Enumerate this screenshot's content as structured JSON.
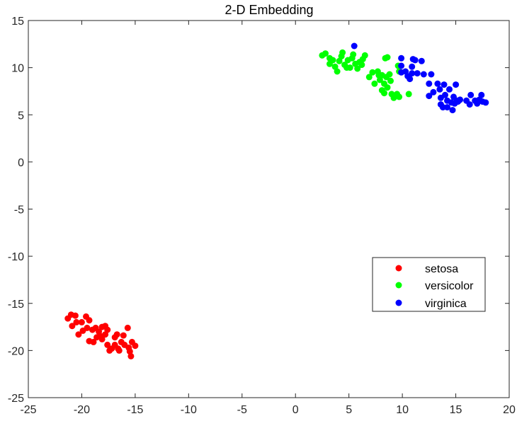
{
  "chart_data": {
    "type": "scatter",
    "title": "2-D Embedding",
    "xlabel": "",
    "ylabel": "",
    "xlim": [
      -25,
      20
    ],
    "ylim": [
      -25,
      15
    ],
    "xticks": [
      "-25",
      "-20",
      "-15",
      "-10",
      "-5",
      "0",
      "5",
      "10",
      "15",
      "20"
    ],
    "yticks": [
      "15",
      "10",
      "5",
      "0",
      "-5",
      "-10",
      "-15",
      "-20",
      "-25"
    ],
    "xtick_values": [
      -25,
      -20,
      -15,
      -10,
      -5,
      0,
      5,
      10,
      15,
      20
    ],
    "ytick_values": [
      15,
      10,
      5,
      0,
      -5,
      -10,
      -15,
      -20,
      -25
    ],
    "grid": false,
    "legend": "lower-right-inside",
    "series": [
      {
        "name": "setosa",
        "color": "#ff0000",
        "points": [
          [
            -21.3,
            -16.6
          ],
          [
            -21.0,
            -16.2
          ],
          [
            -20.6,
            -16.3
          ],
          [
            -20.9,
            -17.4
          ],
          [
            -20.5,
            -17.0
          ],
          [
            -20.3,
            -18.3
          ],
          [
            -19.9,
            -17.9
          ],
          [
            -20.0,
            -17.0
          ],
          [
            -19.6,
            -16.4
          ],
          [
            -19.3,
            -16.8
          ],
          [
            -19.5,
            -17.6
          ],
          [
            -19.0,
            -17.8
          ],
          [
            -18.7,
            -17.6
          ],
          [
            -18.4,
            -18.0
          ],
          [
            -18.1,
            -17.5
          ],
          [
            -17.8,
            -18.3
          ],
          [
            -17.6,
            -17.8
          ],
          [
            -19.3,
            -19.0
          ],
          [
            -18.9,
            -19.1
          ],
          [
            -18.6,
            -18.6
          ],
          [
            -18.1,
            -18.8
          ],
          [
            -17.6,
            -19.4
          ],
          [
            -17.2,
            -19.8
          ],
          [
            -16.9,
            -19.4
          ],
          [
            -16.6,
            -19.8
          ],
          [
            -16.3,
            -19.1
          ],
          [
            -16.7,
            -18.3
          ],
          [
            -16.9,
            -18.6
          ],
          [
            -16.1,
            -18.4
          ],
          [
            -15.7,
            -17.6
          ],
          [
            -16.0,
            -19.4
          ],
          [
            -15.6,
            -19.7
          ],
          [
            -15.3,
            -19.1
          ],
          [
            -15.0,
            -19.5
          ],
          [
            -15.5,
            -20.1
          ],
          [
            -15.4,
            -20.6
          ],
          [
            -17.4,
            -20.0
          ],
          [
            -16.5,
            -20.0
          ],
          [
            -17.8,
            -17.4
          ],
          [
            -18.2,
            -18.5
          ]
        ]
      },
      {
        "name": "versicolor",
        "color": "#00ff00",
        "points": [
          [
            2.5,
            11.3
          ],
          [
            2.8,
            11.5
          ],
          [
            3.2,
            11.0
          ],
          [
            3.5,
            10.8
          ],
          [
            3.2,
            10.4
          ],
          [
            3.7,
            10.1
          ],
          [
            3.9,
            9.6
          ],
          [
            4.1,
            10.7
          ],
          [
            4.3,
            11.2
          ],
          [
            4.4,
            11.6
          ],
          [
            4.6,
            10.3
          ],
          [
            4.9,
            10.8
          ],
          [
            5.1,
            10.0
          ],
          [
            5.3,
            11.0
          ],
          [
            5.4,
            11.4
          ],
          [
            5.6,
            10.4
          ],
          [
            5.8,
            9.9
          ],
          [
            6.0,
            10.6
          ],
          [
            6.3,
            10.9
          ],
          [
            6.5,
            11.3
          ],
          [
            6.2,
            10.3
          ],
          [
            6.9,
            9.0
          ],
          [
            7.2,
            9.5
          ],
          [
            7.4,
            8.3
          ],
          [
            7.7,
            9.6
          ],
          [
            7.9,
            8.7
          ],
          [
            8.1,
            9.2
          ],
          [
            8.3,
            8.3
          ],
          [
            8.5,
            9.0
          ],
          [
            8.1,
            7.6
          ],
          [
            8.3,
            7.3
          ],
          [
            8.6,
            7.9
          ],
          [
            8.9,
            8.6
          ],
          [
            9.0,
            7.2
          ],
          [
            9.2,
            6.8
          ],
          [
            9.5,
            7.2
          ],
          [
            9.7,
            6.9
          ],
          [
            8.4,
            11.0
          ],
          [
            8.6,
            11.1
          ],
          [
            7.8,
            9.2
          ],
          [
            9.7,
            9.6
          ],
          [
            9.6,
            10.2
          ],
          [
            10.6,
            7.2
          ],
          [
            8.8,
            9.3
          ],
          [
            4.8,
            10.0
          ]
        ]
      },
      {
        "name": "virginica",
        "color": "#0000ff",
        "points": [
          [
            5.5,
            12.3
          ],
          [
            9.9,
            11.0
          ],
          [
            9.9,
            10.2
          ],
          [
            9.9,
            9.5
          ],
          [
            10.3,
            9.6
          ],
          [
            10.5,
            9.1
          ],
          [
            10.7,
            8.8
          ],
          [
            10.9,
            10.1
          ],
          [
            11.0,
            10.9
          ],
          [
            11.2,
            10.8
          ],
          [
            11.4,
            9.4
          ],
          [
            10.9,
            9.4
          ],
          [
            11.8,
            10.7
          ],
          [
            12.0,
            9.3
          ],
          [
            12.5,
            8.3
          ],
          [
            12.7,
            9.3
          ],
          [
            12.5,
            7.0
          ],
          [
            12.9,
            7.4
          ],
          [
            13.3,
            8.3
          ],
          [
            13.5,
            7.7
          ],
          [
            13.6,
            6.8
          ],
          [
            13.6,
            6.1
          ],
          [
            13.8,
            5.8
          ],
          [
            14.0,
            7.1
          ],
          [
            14.2,
            6.5
          ],
          [
            14.4,
            7.7
          ],
          [
            14.6,
            6.3
          ],
          [
            14.8,
            6.9
          ],
          [
            14.9,
            6.2
          ],
          [
            14.7,
            5.5
          ],
          [
            15.1,
            6.5
          ],
          [
            15.4,
            6.6
          ],
          [
            14.2,
            5.8
          ],
          [
            15.0,
            8.2
          ],
          [
            13.9,
            8.2
          ],
          [
            16.0,
            6.5
          ],
          [
            16.3,
            6.1
          ],
          [
            16.4,
            7.1
          ],
          [
            16.8,
            6.5
          ],
          [
            17.0,
            6.2
          ],
          [
            17.2,
            6.6
          ],
          [
            17.5,
            6.4
          ],
          [
            17.8,
            6.3
          ],
          [
            17.4,
            7.1
          ],
          [
            15.2,
            6.4
          ]
        ]
      }
    ]
  }
}
